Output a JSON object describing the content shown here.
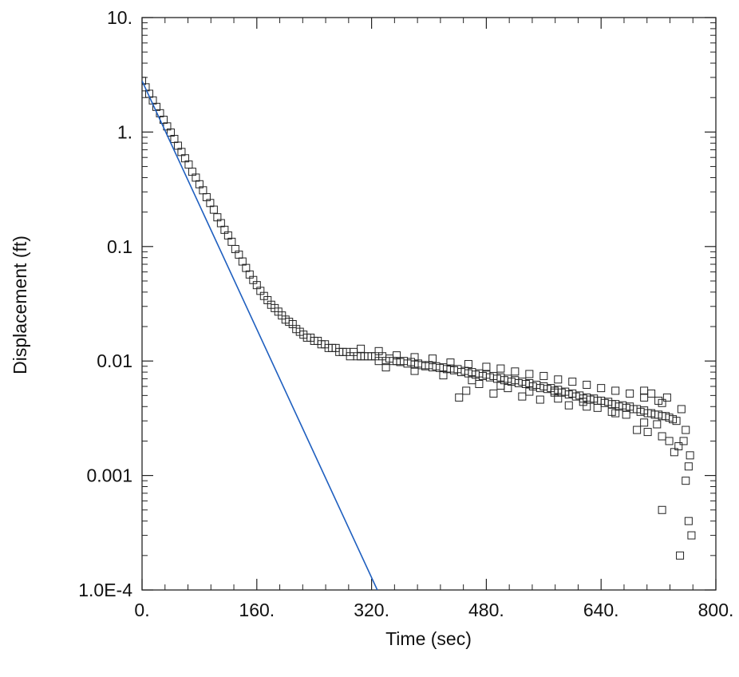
{
  "chart_data": {
    "type": "scatter",
    "title": "",
    "xlabel": "Time (sec)",
    "ylabel": "Displacement (ft)",
    "x_scale": "linear",
    "y_scale": "log",
    "xlim": [
      0,
      800
    ],
    "ylim": [
      0.0001,
      10
    ],
    "x_ticks": [
      {
        "value": 0,
        "label": "0."
      },
      {
        "value": 160,
        "label": "160."
      },
      {
        "value": 320,
        "label": "320."
      },
      {
        "value": 480,
        "label": "480."
      },
      {
        "value": 640,
        "label": "640."
      },
      {
        "value": 800,
        "label": "800."
      }
    ],
    "y_ticks": [
      {
        "value": 10,
        "label": "10."
      },
      {
        "value": 1,
        "label": "1."
      },
      {
        "value": 0.1,
        "label": "0.1"
      },
      {
        "value": 0.01,
        "label": "0.01"
      },
      {
        "value": 0.001,
        "label": "0.001"
      },
      {
        "value": 0.0001,
        "label": "1.0E-4"
      }
    ],
    "grid": false,
    "legend": "none",
    "colors": {
      "data_marker": "#222222",
      "fit_line": "#1f5fbf",
      "frame": "#222222"
    },
    "series": [
      {
        "type": "scatter",
        "marker": "open-square",
        "points": [
          [
            0,
            2.8
          ],
          [
            5,
            2.46
          ],
          [
            10,
            2.16
          ],
          [
            15,
            1.89
          ],
          [
            20,
            1.66
          ],
          [
            25,
            1.46
          ],
          [
            30,
            1.28
          ],
          [
            35,
            1.12
          ],
          [
            40,
            0.99
          ],
          [
            45,
            0.87
          ],
          [
            50,
            0.76
          ],
          [
            55,
            0.67
          ],
          [
            60,
            0.59
          ],
          [
            65,
            0.52
          ],
          [
            70,
            0.45
          ],
          [
            75,
            0.4
          ],
          [
            80,
            0.35
          ],
          [
            85,
            0.31
          ],
          [
            90,
            0.27
          ],
          [
            95,
            0.24
          ],
          [
            100,
            0.21
          ],
          [
            105,
            0.18
          ],
          [
            110,
            0.16
          ],
          [
            115,
            0.14
          ],
          [
            120,
            0.125
          ],
          [
            125,
            0.11
          ],
          [
            130,
            0.095
          ],
          [
            135,
            0.085
          ],
          [
            140,
            0.074
          ],
          [
            145,
            0.065
          ],
          [
            150,
            0.057
          ],
          [
            155,
            0.051
          ],
          [
            160,
            0.046
          ],
          [
            165,
            0.041
          ],
          [
            170,
            0.037
          ],
          [
            175,
            0.034
          ],
          [
            180,
            0.031
          ],
          [
            185,
            0.029
          ],
          [
            190,
            0.027
          ],
          [
            195,
            0.025
          ],
          [
            200,
            0.023
          ],
          [
            205,
            0.022
          ],
          [
            210,
            0.021
          ],
          [
            215,
            0.019
          ],
          [
            220,
            0.018
          ],
          [
            225,
            0.017
          ],
          [
            230,
            0.016
          ],
          [
            235,
            0.016
          ],
          [
            240,
            0.015
          ],
          [
            245,
            0.015
          ],
          [
            250,
            0.014
          ],
          [
            255,
            0.014
          ],
          [
            260,
            0.013
          ],
          [
            265,
            0.013
          ],
          [
            270,
            0.013
          ],
          [
            275,
            0.012
          ],
          [
            280,
            0.012
          ],
          [
            285,
            0.012
          ],
          [
            290,
            0.011
          ],
          [
            295,
            0.012
          ],
          [
            300,
            0.011
          ],
          [
            305,
            0.011
          ],
          [
            310,
            0.011
          ],
          [
            315,
            0.011
          ],
          [
            320,
            0.011
          ],
          [
            325,
            0.011
          ],
          [
            330,
            0.01
          ],
          [
            335,
            0.011
          ],
          [
            340,
            0.01
          ],
          [
            345,
            0.0105
          ],
          [
            350,
            0.01
          ],
          [
            355,
            0.01
          ],
          [
            360,
            0.0098
          ],
          [
            365,
            0.01
          ],
          [
            370,
            0.0095
          ],
          [
            375,
            0.0098
          ],
          [
            380,
            0.0093
          ],
          [
            385,
            0.0095
          ],
          [
            390,
            0.0092
          ],
          [
            395,
            0.009
          ],
          [
            400,
            0.0092
          ],
          [
            405,
            0.0088
          ],
          [
            410,
            0.009
          ],
          [
            415,
            0.0087
          ],
          [
            420,
            0.0088
          ],
          [
            425,
            0.0085
          ],
          [
            430,
            0.0086
          ],
          [
            435,
            0.0083
          ],
          [
            440,
            0.0085
          ],
          [
            445,
            0.008
          ],
          [
            450,
            0.0082
          ],
          [
            455,
            0.0078
          ],
          [
            460,
            0.008
          ],
          [
            465,
            0.0076
          ],
          [
            470,
            0.0078
          ],
          [
            475,
            0.0074
          ],
          [
            480,
            0.0076
          ],
          [
            485,
            0.0072
          ],
          [
            490,
            0.0074
          ],
          [
            495,
            0.007
          ],
          [
            500,
            0.0072
          ],
          [
            505,
            0.0068
          ],
          [
            510,
            0.007
          ],
          [
            515,
            0.0066
          ],
          [
            520,
            0.0068
          ],
          [
            525,
            0.0064
          ],
          [
            530,
            0.0066
          ],
          [
            535,
            0.0063
          ],
          [
            540,
            0.0064
          ],
          [
            545,
            0.006
          ],
          [
            550,
            0.0062
          ],
          [
            555,
            0.0058
          ],
          [
            560,
            0.006
          ],
          [
            565,
            0.0057
          ],
          [
            570,
            0.0058
          ],
          [
            575,
            0.0055
          ],
          [
            580,
            0.0056
          ],
          [
            585,
            0.0053
          ],
          [
            590,
            0.0054
          ],
          [
            595,
            0.0051
          ],
          [
            600,
            0.0052
          ],
          [
            605,
            0.0049
          ],
          [
            610,
            0.005
          ],
          [
            615,
            0.0047
          ],
          [
            620,
            0.0048
          ],
          [
            625,
            0.0046
          ],
          [
            630,
            0.0047
          ],
          [
            635,
            0.0045
          ],
          [
            640,
            0.0045
          ],
          [
            645,
            0.0043
          ],
          [
            650,
            0.0044
          ],
          [
            655,
            0.0042
          ],
          [
            660,
            0.0042
          ],
          [
            665,
            0.004
          ],
          [
            670,
            0.0041
          ],
          [
            675,
            0.0039
          ],
          [
            680,
            0.004
          ],
          [
            685,
            0.0038
          ],
          [
            690,
            0.0038
          ],
          [
            695,
            0.0036
          ],
          [
            700,
            0.0037
          ],
          [
            705,
            0.0035
          ],
          [
            710,
            0.0035
          ],
          [
            715,
            0.0034
          ],
          [
            720,
            0.0034
          ],
          [
            725,
            0.0033
          ],
          [
            730,
            0.0033
          ],
          [
            735,
            0.0032
          ],
          [
            740,
            0.0031
          ],
          [
            745,
            0.003
          ],
          [
            305,
            0.0128
          ],
          [
            330,
            0.0122
          ],
          [
            355,
            0.0112
          ],
          [
            380,
            0.0108
          ],
          [
            405,
            0.0105
          ],
          [
            430,
            0.0097
          ],
          [
            455,
            0.0094
          ],
          [
            480,
            0.0089
          ],
          [
            500,
            0.0086
          ],
          [
            520,
            0.0081
          ],
          [
            540,
            0.0077
          ],
          [
            560,
            0.0074
          ],
          [
            580,
            0.0069
          ],
          [
            600,
            0.0066
          ],
          [
            620,
            0.0062
          ],
          [
            640,
            0.0058
          ],
          [
            660,
            0.0055
          ],
          [
            680,
            0.0052
          ],
          [
            700,
            0.0048
          ],
          [
            720,
            0.0045
          ],
          [
            340,
            0.0088
          ],
          [
            380,
            0.0082
          ],
          [
            420,
            0.0075
          ],
          [
            460,
            0.0068
          ],
          [
            500,
            0.0061
          ],
          [
            540,
            0.0054
          ],
          [
            580,
            0.0047
          ],
          [
            620,
            0.004
          ],
          [
            660,
            0.0035
          ],
          [
            700,
            0.0029
          ],
          [
            442,
            0.0048
          ],
          [
            452,
            0.0055
          ],
          [
            470,
            0.0063
          ],
          [
            490,
            0.0052
          ],
          [
            510,
            0.0058
          ],
          [
            530,
            0.0049
          ],
          [
            555,
            0.0046
          ],
          [
            575,
            0.0053
          ],
          [
            595,
            0.0041
          ],
          [
            615,
            0.0044
          ],
          [
            635,
            0.0039
          ],
          [
            655,
            0.0036
          ],
          [
            675,
            0.0034
          ],
          [
            690,
            0.0025
          ],
          [
            705,
            0.0024
          ],
          [
            718,
            0.0028
          ],
          [
            725,
            0.0022
          ],
          [
            735,
            0.002
          ],
          [
            742,
            0.0016
          ],
          [
            748,
            0.0018
          ],
          [
            755,
            0.002
          ],
          [
            700,
            0.0055
          ],
          [
            710,
            0.0052
          ],
          [
            725,
            0.0043
          ],
          [
            732,
            0.0048
          ],
          [
            752,
            0.0038
          ],
          [
            758,
            0.0025
          ],
          [
            762,
            0.0012
          ],
          [
            764,
            0.0015
          ],
          [
            725,
            0.0005
          ],
          [
            750,
            0.0002
          ],
          [
            758,
            0.0009
          ],
          [
            762,
            0.0004
          ],
          [
            766,
            0.0003
          ]
        ]
      },
      {
        "type": "line",
        "style": "straight-line fit",
        "points": [
          [
            0,
            2.8
          ],
          [
            328,
            0.0001
          ]
        ]
      }
    ]
  }
}
